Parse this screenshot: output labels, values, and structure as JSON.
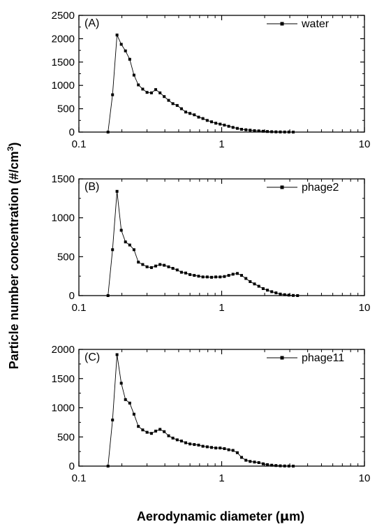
{
  "figure": {
    "ylabel_main": "Particle number concentration (#/cm",
    "ylabel_sup": "3",
    "ylabel_close": ")",
    "xlabel_main": "Aerodynamic diameter (",
    "xlabel_mu": "μ",
    "xlabel_unit": "m)"
  },
  "chart_data": [
    {
      "type": "line",
      "panel_label": "(A)",
      "series": [
        {
          "name": "water",
          "marker": "square",
          "color": "#000000",
          "x": [
            0.16,
            0.172,
            0.185,
            0.198,
            0.212,
            0.227,
            0.243,
            0.261,
            0.28,
            0.3,
            0.322,
            0.345,
            0.37,
            0.396,
            0.425,
            0.455,
            0.488,
            0.523,
            0.56,
            0.6,
            0.643,
            0.69,
            0.739,
            0.792,
            0.849,
            0.91,
            0.975,
            1.045,
            1.12,
            1.2,
            1.287,
            1.379,
            1.478,
            1.584,
            1.698,
            1.82,
            1.951,
            2.091,
            2.241,
            2.402,
            2.575,
            2.76,
            2.958,
            3.171
          ],
          "y": [
            0,
            800,
            2080,
            1880,
            1740,
            1560,
            1220,
            1010,
            920,
            850,
            840,
            910,
            840,
            760,
            680,
            610,
            570,
            500,
            430,
            400,
            370,
            320,
            290,
            250,
            220,
            190,
            170,
            150,
            125,
            100,
            80,
            60,
            50,
            40,
            30,
            25,
            18,
            12,
            8,
            5,
            3,
            2,
            1,
            0
          ]
        }
      ],
      "xscale": "log",
      "xlim": [
        0.1,
        10
      ],
      "xticks": [
        0.1,
        1,
        10
      ],
      "xtick_labels": [
        "0.1",
        "1",
        "10"
      ],
      "ylim": [
        0,
        2500
      ],
      "yticks": [
        0,
        500,
        1000,
        1500,
        2000,
        2500
      ],
      "ytick_labels": [
        "0",
        "500",
        "1000",
        "1500",
        "2000",
        "2500"
      ],
      "legend": "top-right"
    },
    {
      "type": "line",
      "panel_label": "(B)",
      "series": [
        {
          "name": "phage2",
          "marker": "square",
          "color": "#000000",
          "x": [
            0.16,
            0.172,
            0.185,
            0.198,
            0.212,
            0.227,
            0.243,
            0.261,
            0.28,
            0.3,
            0.322,
            0.345,
            0.37,
            0.396,
            0.425,
            0.455,
            0.488,
            0.523,
            0.56,
            0.6,
            0.643,
            0.69,
            0.739,
            0.792,
            0.849,
            0.91,
            0.975,
            1.045,
            1.12,
            1.2,
            1.287,
            1.379,
            1.478,
            1.584,
            1.698,
            1.82,
            1.951,
            2.091,
            2.241,
            2.402,
            2.575,
            2.76,
            2.958,
            3.171,
            3.4
          ],
          "y": [
            0,
            590,
            1340,
            840,
            690,
            650,
            590,
            430,
            400,
            370,
            360,
            380,
            400,
            390,
            370,
            350,
            330,
            300,
            290,
            270,
            260,
            250,
            240,
            240,
            235,
            240,
            240,
            245,
            260,
            275,
            285,
            260,
            220,
            180,
            150,
            120,
            90,
            70,
            50,
            35,
            20,
            12,
            6,
            2,
            0
          ]
        }
      ],
      "xscale": "log",
      "xlim": [
        0.1,
        10
      ],
      "xticks": [
        0.1,
        1,
        10
      ],
      "xtick_labels": [
        "0.1",
        "1",
        "10"
      ],
      "ylim": [
        0,
        1500
      ],
      "yticks": [
        0,
        500,
        1000,
        1500
      ],
      "ytick_labels": [
        "0",
        "500",
        "1000",
        "1500"
      ],
      "legend": "top-right"
    },
    {
      "type": "line",
      "panel_label": "(C)",
      "series": [
        {
          "name": "phage11",
          "marker": "square",
          "color": "#000000",
          "x": [
            0.16,
            0.172,
            0.185,
            0.198,
            0.212,
            0.227,
            0.243,
            0.261,
            0.28,
            0.3,
            0.322,
            0.345,
            0.37,
            0.396,
            0.425,
            0.455,
            0.488,
            0.523,
            0.56,
            0.6,
            0.643,
            0.69,
            0.739,
            0.792,
            0.849,
            0.91,
            0.975,
            1.045,
            1.12,
            1.2,
            1.287,
            1.379,
            1.478,
            1.584,
            1.698,
            1.82,
            1.951,
            2.091,
            2.241,
            2.402,
            2.575,
            2.76,
            2.958,
            3.171
          ],
          "y": [
            0,
            790,
            1910,
            1420,
            1140,
            1080,
            890,
            680,
            620,
            580,
            560,
            600,
            630,
            590,
            520,
            480,
            450,
            430,
            400,
            380,
            370,
            360,
            340,
            330,
            320,
            310,
            310,
            300,
            280,
            270,
            230,
            150,
            100,
            80,
            70,
            60,
            40,
            25,
            15,
            10,
            5,
            2,
            1,
            0
          ]
        }
      ],
      "xscale": "log",
      "xlim": [
        0.1,
        10
      ],
      "xticks": [
        0.1,
        1,
        10
      ],
      "xtick_labels": [
        "0.1",
        "1",
        "10"
      ],
      "ylim": [
        0,
        2000
      ],
      "yticks": [
        0,
        500,
        1000,
        1500,
        2000
      ],
      "ytick_labels": [
        "0",
        "500",
        "1000",
        "1500",
        "2000"
      ],
      "legend": "top-right"
    }
  ]
}
